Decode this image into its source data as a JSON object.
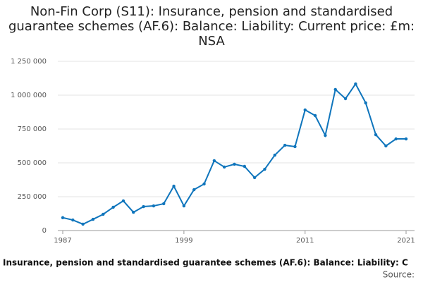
{
  "chart_data": {
    "type": "line",
    "title": "Non-Fin Corp (S11): Insurance, pension and standardised guarantee schemes (AF.6): Balance: Liability: Current price: £m: NSA",
    "x": [
      1987,
      1988,
      1989,
      1990,
      1991,
      1992,
      1993,
      1994,
      1995,
      1996,
      1997,
      1998,
      1999,
      2000,
      2001,
      2002,
      2003,
      2004,
      2005,
      2006,
      2007,
      2008,
      2009,
      2010,
      2011,
      2012,
      2013,
      2014,
      2015,
      2016,
      2017,
      2018,
      2019,
      2020,
      2021
    ],
    "series": [
      {
        "name": "Insurance, pension and standardised guarantee schemes (AF.6): Balance: Liability: C",
        "color": "#0f75bc",
        "values": [
          95000,
          78000,
          47000,
          83000,
          120000,
          172000,
          219000,
          135000,
          177000,
          182000,
          198000,
          328000,
          182000,
          302000,
          344000,
          516000,
          469000,
          490000,
          474000,
          391000,
          453000,
          557000,
          630000,
          620000,
          891000,
          849000,
          703000,
          1042000,
          974000,
          1083000,
          943000,
          708000,
          625000,
          677000,
          677000
        ]
      }
    ],
    "xlim": [
      1987,
      2021
    ],
    "xticks": [
      1987,
      1999,
      2011,
      2021
    ],
    "ylim": [
      0,
      1250000
    ],
    "yticks": [
      0,
      {
        "value": 250000,
        "label": "250 000"
      },
      {
        "value": 500000,
        "label": "500 000"
      },
      {
        "value": 750000,
        "label": "750 000"
      },
      {
        "value": 1000000,
        "label": "1 000 000"
      },
      {
        "value": 1250000,
        "label": "1 250 000"
      }
    ],
    "grid": true,
    "source": "Source:"
  }
}
